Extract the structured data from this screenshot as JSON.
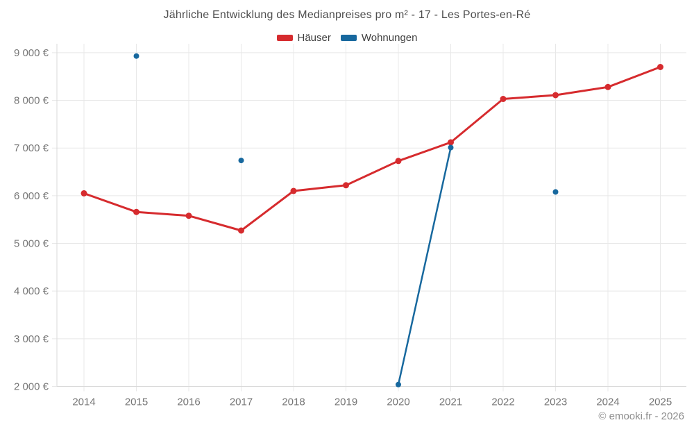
{
  "title": "Jährliche Entwicklung des Medianpreises pro m² - 17 - Les Portes-en-Ré",
  "footer": "© emooki.fr - 2026",
  "legend": [
    {
      "label": "Häuser",
      "color": "#d62b2e"
    },
    {
      "label": "Wohnungen",
      "color": "#17689e"
    }
  ],
  "chart_data": {
    "type": "line",
    "title": "Jährliche Entwicklung des Medianpreises pro m² - 17 - Les Portes-en-Ré",
    "categories": [
      "2014",
      "2015",
      "2016",
      "2017",
      "2018",
      "2019",
      "2020",
      "2021",
      "2022",
      "2023",
      "2024",
      "2025"
    ],
    "series": [
      {
        "name": "Häuser",
        "color": "#d62b2e",
        "values": [
          6050,
          5660,
          5580,
          5270,
          6100,
          6220,
          6730,
          7120,
          8030,
          8110,
          8280,
          8700
        ]
      },
      {
        "name": "Wohnungen",
        "color": "#17689e",
        "values": [
          null,
          8930,
          null,
          6740,
          null,
          null,
          2040,
          7010,
          null,
          6080,
          null,
          null
        ]
      }
    ],
    "xlabel": "",
    "ylabel": "",
    "ylim": [
      2000,
      9000
    ],
    "yticks": [
      2000,
      3000,
      4000,
      5000,
      6000,
      7000,
      8000,
      9000
    ],
    "ytick_labels": [
      "2 000 €",
      "3 000 €",
      "4 000 €",
      "5 000 €",
      "6 000 €",
      "7 000 €",
      "8 000 €",
      "9 000 €"
    ],
    "grid": true,
    "legend_position": "top-center",
    "note": "Wohnungen has isolated points (2015, 2017, 2023); only 2020→2021 are connected"
  }
}
